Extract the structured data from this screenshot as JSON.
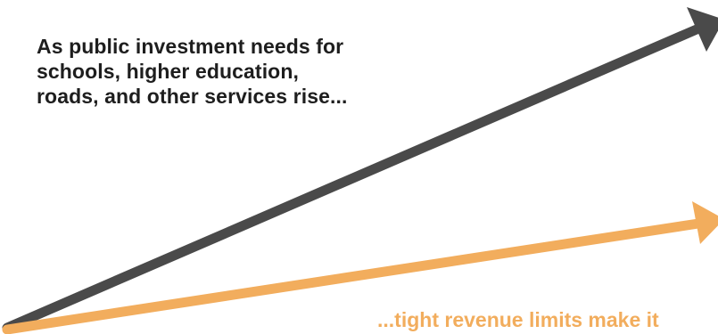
{
  "upper_caption": {
    "lines": [
      "As public investment needs for",
      "schools, higher education,",
      "roads, and other services rise..."
    ]
  },
  "lower_caption": {
    "text": "...tight revenue limits make it"
  },
  "colors": {
    "dark_arrow": "#4a4a4a",
    "orange_arrow": "#f2ad5d",
    "upper_text": "#1e1e1e",
    "lower_text": "#f2ad5d"
  }
}
